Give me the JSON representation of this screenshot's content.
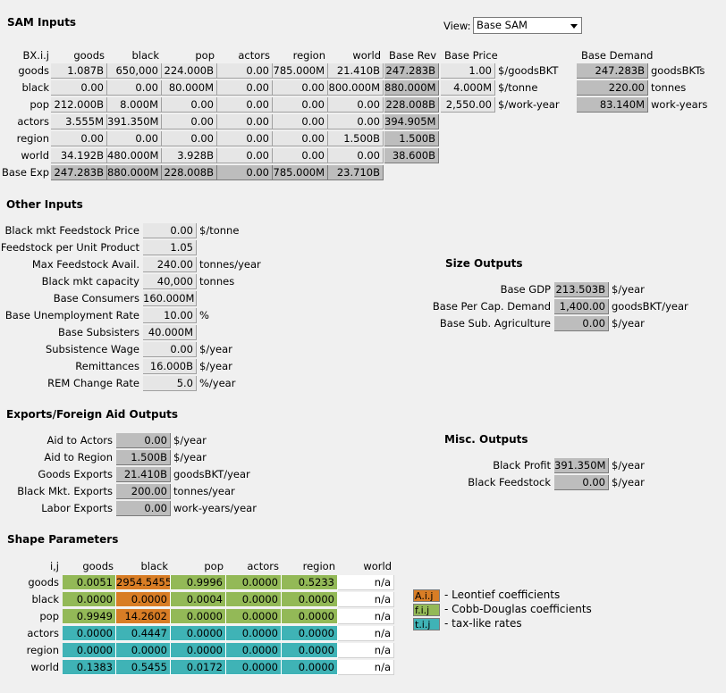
{
  "sam": {
    "title": "SAM Inputs",
    "corner": "BX.i.j",
    "col_headers": [
      "goods",
      "black",
      "pop",
      "actors",
      "region",
      "world"
    ],
    "row_labels": [
      "goods",
      "black",
      "pop",
      "actors",
      "region",
      "world"
    ],
    "rows": [
      [
        "1.087B",
        "650,000",
        "224.000B",
        "0.00",
        "785.000M",
        "21.410B"
      ],
      [
        "0.00",
        "0.00",
        "80.000M",
        "0.00",
        "0.00",
        "800.000M"
      ],
      [
        "212.000B",
        "8.000M",
        "0.00",
        "0.00",
        "0.00",
        "0.00"
      ],
      [
        "3.555M",
        "391.350M",
        "0.00",
        "0.00",
        "0.00",
        "0.00"
      ],
      [
        "0.00",
        "0.00",
        "0.00",
        "0.00",
        "0.00",
        "1.500B"
      ],
      [
        "34.192B",
        "480.000M",
        "3.928B",
        "0.00",
        "0.00",
        "0.00"
      ]
    ],
    "base_rev_header": "Base Rev",
    "base_rev": [
      "247.283B",
      "880.000M",
      "228.008B",
      "394.905M",
      "1.500B",
      "38.600B"
    ],
    "base_exp_label": "Base Exp",
    "base_exp": [
      "247.283B",
      "880.000M",
      "228.008B",
      "0.00",
      "785.000M",
      "23.710B"
    ],
    "base_price_header": "Base Price",
    "base_price": [
      {
        "value": "1.00",
        "unit": "$/goodsBKT"
      },
      {
        "value": "4.000M",
        "unit": "$/tonne"
      },
      {
        "value": "2,550.00",
        "unit": "$/work-year"
      }
    ],
    "base_demand_header": "Base Demand",
    "base_demand": [
      {
        "value": "247.283B",
        "unit": "goodsBKTs"
      },
      {
        "value": "220.00",
        "unit": "tonnes"
      },
      {
        "value": "83.140M",
        "unit": "work-years"
      }
    ]
  },
  "view": {
    "label": "View:",
    "selected": "Base SAM"
  },
  "other_inputs": {
    "title": "Other Inputs",
    "items": [
      {
        "label": "Black mkt Feedstock Price",
        "value": "0.00",
        "unit": "$/tonne"
      },
      {
        "label": "Feedstock per Unit Product",
        "value": "1.05",
        "unit": ""
      },
      {
        "label": "Max Feedstock Avail.",
        "value": "240.00",
        "unit": "tonnes/year"
      },
      {
        "label": "Black mkt capacity",
        "value": "40,000",
        "unit": "tonnes"
      },
      {
        "label": "Base Consumers",
        "value": "160.000M",
        "unit": ""
      },
      {
        "label": "Base Unemployment Rate",
        "value": "10.00",
        "unit": "%"
      },
      {
        "label": "Base Subsisters",
        "value": "40.000M",
        "unit": ""
      },
      {
        "label": "Subsistence Wage",
        "value": "0.00",
        "unit": "$/year"
      },
      {
        "label": "Remittances",
        "value": "16.000B",
        "unit": "$/year"
      },
      {
        "label": "REM Change Rate",
        "value": "5.0",
        "unit": "%/year"
      }
    ]
  },
  "size_outputs": {
    "title": "Size Outputs",
    "items": [
      {
        "label": "Base GDP",
        "value": "213.503B",
        "unit": "$/year"
      },
      {
        "label": "Base Per Cap. Demand",
        "value": "1,400.00",
        "unit": "goodsBKT/year"
      },
      {
        "label": "Base Sub. Agriculture",
        "value": "0.00",
        "unit": "$/year"
      }
    ]
  },
  "exports": {
    "title": "Exports/Foreign Aid Outputs",
    "items": [
      {
        "label": "Aid to Actors",
        "value": "0.00",
        "unit": "$/year"
      },
      {
        "label": "Aid to Region",
        "value": "1.500B",
        "unit": "$/year"
      },
      {
        "label": "Goods Exports",
        "value": "21.410B",
        "unit": "goodsBKT/year"
      },
      {
        "label": "Black Mkt. Exports",
        "value": "200.00",
        "unit": "tonnes/year"
      },
      {
        "label": "Labor Exports",
        "value": "0.00",
        "unit": "work-years/year"
      }
    ]
  },
  "misc_outputs": {
    "title": "Misc. Outputs",
    "items": [
      {
        "label": "Black Profit",
        "value": "391.350M",
        "unit": "$/year"
      },
      {
        "label": "Black Feedstock",
        "value": "0.00",
        "unit": "$/year"
      }
    ]
  },
  "shape": {
    "title": "Shape Parameters",
    "corner": "i,j",
    "col_headers": [
      "goods",
      "black",
      "pop",
      "actors",
      "region",
      "world"
    ],
    "row_labels": [
      "goods",
      "black",
      "pop",
      "actors",
      "region",
      "world"
    ],
    "rows": [
      [
        "0.0051",
        "2954.5455",
        "0.9996",
        "0.0000",
        "0.5233",
        "n/a"
      ],
      [
        "0.0000",
        "0.0000",
        "0.0004",
        "0.0000",
        "0.0000",
        "n/a"
      ],
      [
        "0.9949",
        "14.2602",
        "0.0000",
        "0.0000",
        "0.0000",
        "n/a"
      ],
      [
        "0.0000",
        "0.4447",
        "0.0000",
        "0.0000",
        "0.0000",
        "n/a"
      ],
      [
        "0.0000",
        "0.0000",
        "0.0000",
        "0.0000",
        "0.0000",
        "n/a"
      ],
      [
        "0.1383",
        "0.5455",
        "0.0172",
        "0.0000",
        "0.0000",
        "n/a"
      ]
    ],
    "colors": [
      [
        "green",
        "orange",
        "green",
        "green",
        "green",
        "white"
      ],
      [
        "green",
        "orange",
        "green",
        "green",
        "green",
        "white"
      ],
      [
        "green",
        "orange",
        "green",
        "green",
        "green",
        "white"
      ],
      [
        "teal",
        "teal",
        "teal",
        "teal",
        "teal",
        "white"
      ],
      [
        "teal",
        "teal",
        "teal",
        "teal",
        "teal",
        "white"
      ],
      [
        "teal",
        "teal",
        "teal",
        "teal",
        "teal",
        "white"
      ]
    ]
  },
  "legend": [
    {
      "key": "A.i.j",
      "text": "- Leontief coefficients",
      "color": "#d87d25"
    },
    {
      "key": "f.i.j",
      "text": "- Cobb-Douglas coefficients",
      "color": "#93b957"
    },
    {
      "key": "t.i.j",
      "text": "- tax-like rates",
      "color": "#3fb3b6"
    }
  ]
}
